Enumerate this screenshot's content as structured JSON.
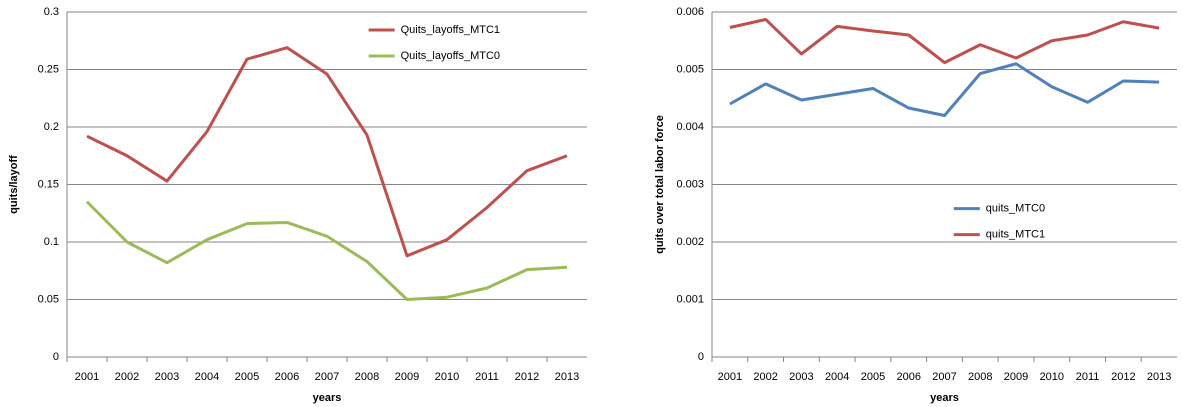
{
  "chart_data": [
    {
      "type": "line",
      "xlabel": "years",
      "ylabel": "quits/layoff",
      "categories": [
        "2001",
        "2002",
        "2003",
        "2004",
        "2005",
        "2006",
        "2007",
        "2008",
        "2009",
        "2010",
        "2011",
        "2012",
        "2013"
      ],
      "series": [
        {
          "name": "Quits_layoffs_MTC1",
          "color": "#c0504d",
          "values": [
            0.192,
            0.175,
            0.153,
            0.196,
            0.259,
            0.269,
            0.246,
            0.193,
            0.088,
            0.102,
            0.13,
            0.162,
            0.175
          ]
        },
        {
          "name": "Quits_layoffs_MTC0",
          "color": "#9bbb59",
          "values": [
            0.135,
            0.1,
            0.082,
            0.102,
            0.116,
            0.117,
            0.105,
            0.083,
            0.05,
            0.052,
            0.06,
            0.076,
            0.078
          ]
        }
      ],
      "ylim": [
        0,
        0.3
      ],
      "yticks": [
        0,
        0.05,
        0.1,
        0.15,
        0.2,
        0.25,
        0.3
      ],
      "grid": true,
      "legend": "upper-right"
    },
    {
      "type": "line",
      "xlabel": "years",
      "ylabel": "quits over total labor force",
      "categories": [
        "2001",
        "2002",
        "2003",
        "2004",
        "2005",
        "2006",
        "2007",
        "2008",
        "2009",
        "2010",
        "2011",
        "2012",
        "2013"
      ],
      "series": [
        {
          "name": "quits_MTC0",
          "color": "#4f81bd",
          "values": [
            0.0044,
            0.00475,
            0.00447,
            0.00457,
            0.00467,
            0.00433,
            0.0042,
            0.00493,
            0.0051,
            0.0047,
            0.00443,
            0.0048,
            0.00478
          ]
        },
        {
          "name": "quits_MTC1",
          "color": "#c0504d",
          "values": [
            0.00573,
            0.00587,
            0.00527,
            0.00575,
            0.00567,
            0.0056,
            0.00512,
            0.00543,
            0.0052,
            0.0055,
            0.0056,
            0.00583,
            0.00572
          ]
        }
      ],
      "ylim": [
        0,
        0.006
      ],
      "yticks": [
        0,
        0.001,
        0.002,
        0.003,
        0.004,
        0.005,
        0.006
      ],
      "grid": true,
      "legend": "center"
    }
  ]
}
